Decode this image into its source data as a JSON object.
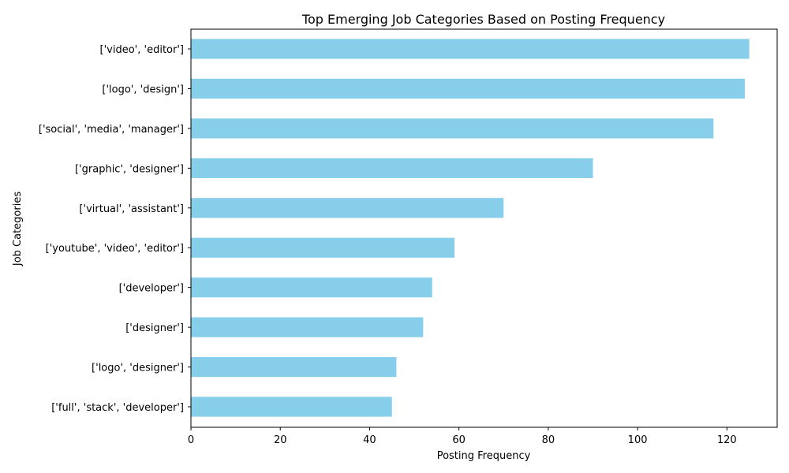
{
  "chart_data": {
    "type": "bar",
    "orientation": "horizontal",
    "title": "Top Emerging Job Categories Based on Posting Frequency",
    "xlabel": "Posting Frequency",
    "ylabel": "Job Categories",
    "categories": [
      "['video', 'editor']",
      "['logo', 'design']",
      "['social', 'media', 'manager']",
      "['graphic', 'designer']",
      "['virtual', 'assistant']",
      "['youtube', 'video', 'editor']",
      "['developer']",
      "['designer']",
      "['logo', 'designer']",
      "['full', 'stack', 'developer']"
    ],
    "values": [
      125,
      124,
      117,
      90,
      70,
      59,
      54,
      52,
      46,
      45
    ],
    "xlim": [
      0,
      131.25
    ],
    "xticks": [
      0,
      20,
      40,
      60,
      80,
      100,
      120
    ],
    "bar_color": "#87ceeb",
    "grid": false,
    "legend": "none"
  }
}
